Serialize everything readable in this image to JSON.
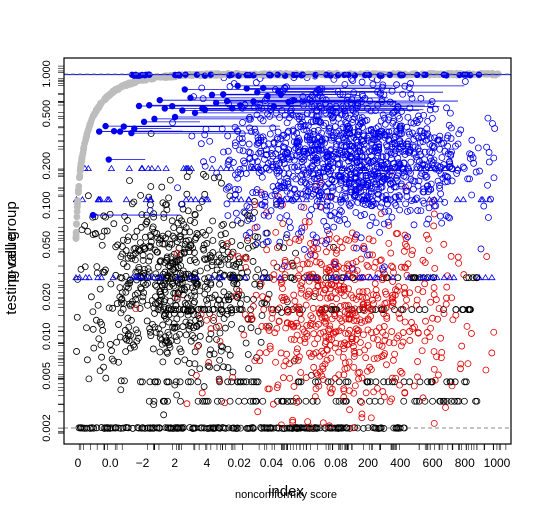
{
  "chart_data": {
    "type": "scatter",
    "note_overplot": true,
    "xlabel_overlap": [
      "noncomformity score",
      "index"
    ],
    "ylabel_overlap": [
      "p-value",
      "testing cell group"
    ],
    "x_tick_labels": [
      "0",
      "0.0",
      "−2",
      "2",
      "4",
      "0.02",
      "0.04",
      "0.06",
      "0.08",
      "200",
      "400",
      "600",
      "800",
      "1000"
    ],
    "y_tick_labels": [
      "0.002",
      "0.005",
      "0.010",
      "0.020",
      "0.050",
      "0.100",
      "0.200",
      "0.500",
      "1.000"
    ],
    "ylog": true,
    "xlim": [
      0,
      1000
    ],
    "ylim": [
      0.002,
      1.0
    ],
    "reference_lines": [
      {
        "y": 1.0,
        "style": "dashed",
        "color": "#888888"
      },
      {
        "y": 0.002,
        "style": "dashed",
        "color": "#888888"
      }
    ],
    "series": [
      {
        "color": "#000000",
        "marker": "open-circle"
      },
      {
        "color": "#e00000",
        "marker": "open-circle"
      },
      {
        "color": "#0000ee",
        "marker": "open-circle"
      },
      {
        "color": "#0000ee",
        "marker": "filled-circle-with-segment"
      },
      {
        "color": "#0000ee",
        "marker": "open-triangle"
      },
      {
        "color": "#bdbdbd",
        "marker": "filled-circle"
      }
    ],
    "grid": false,
    "legend": "none"
  }
}
